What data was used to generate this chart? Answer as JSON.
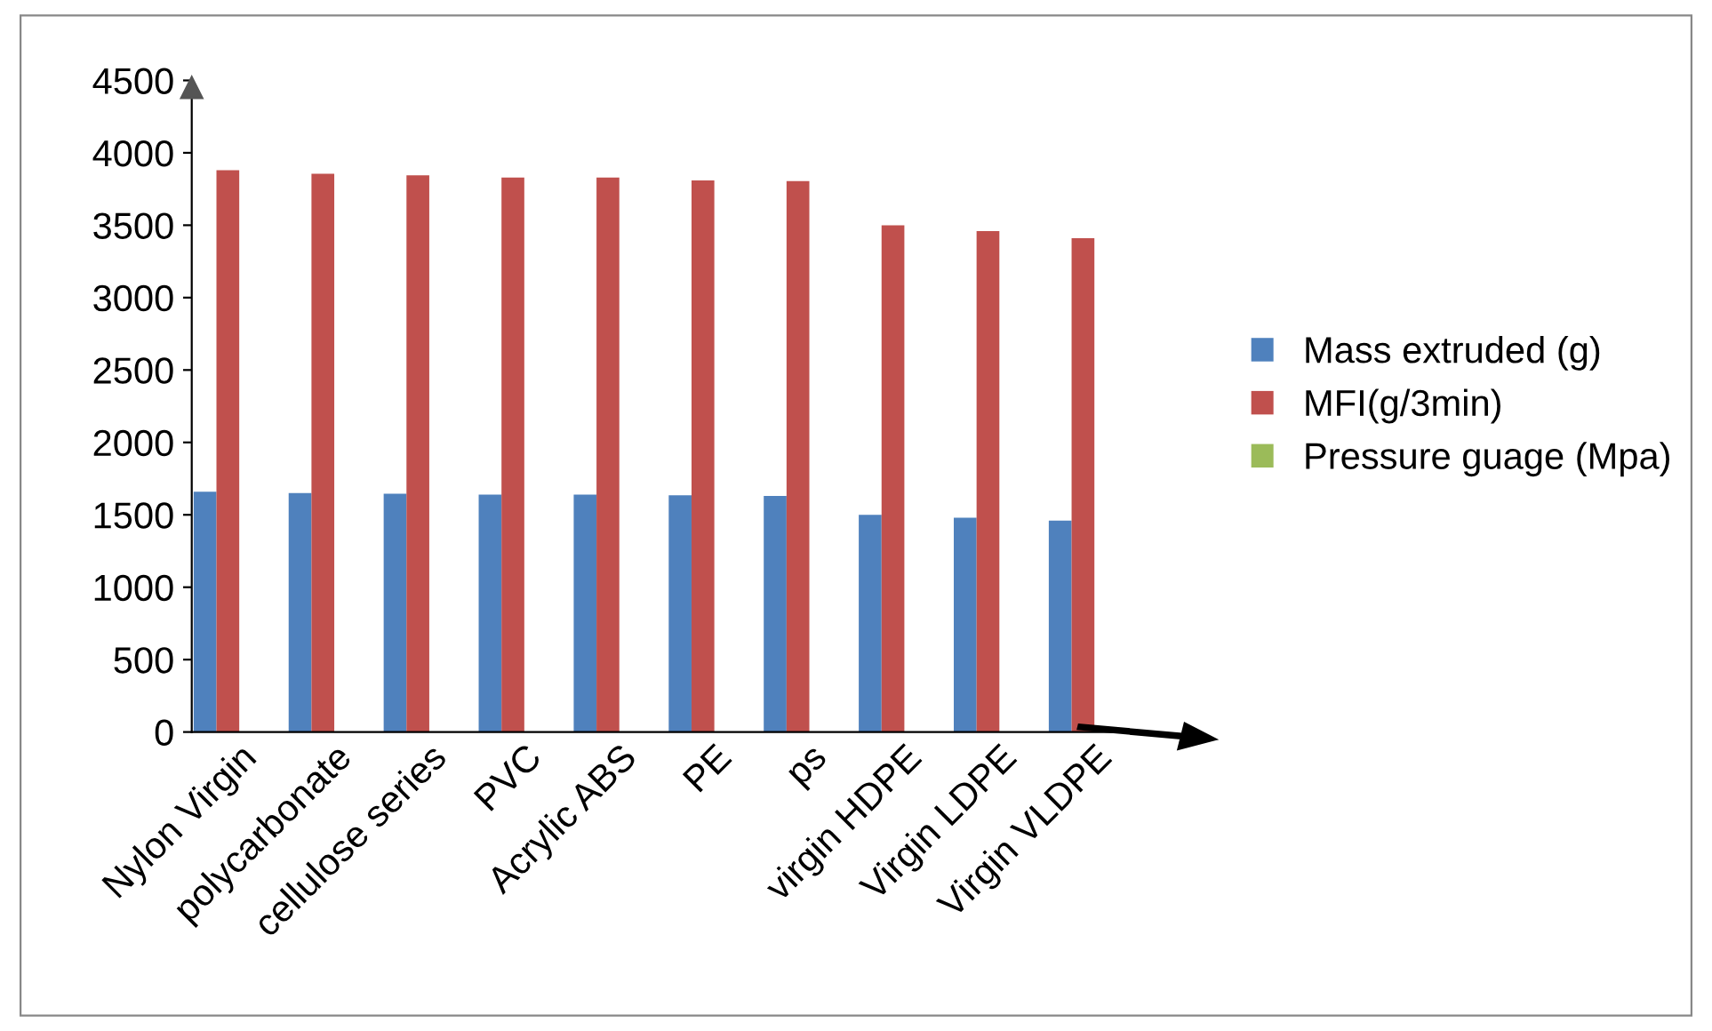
{
  "chart_data": {
    "type": "bar",
    "categories": [
      "Nylon Virgin",
      "polycarbonate",
      "cellulose series",
      "PVC",
      "Acrylic ABS",
      "PE",
      "ps",
      "virgin HDPE",
      "Virgin LDPE",
      "Virgin VLDPE"
    ],
    "series": [
      {
        "name": "Mass extruded (g)",
        "color": "#4f81bd",
        "values": [
          1660,
          1650,
          1645,
          1640,
          1640,
          1635,
          1630,
          1500,
          1480,
          1460
        ]
      },
      {
        "name": "MFI(g/3min)",
        "color": "#c0504d",
        "values": [
          3880,
          3855,
          3845,
          3830,
          3830,
          3810,
          3805,
          3500,
          3460,
          3410
        ]
      },
      {
        "name": "Pressure guage (Mpa)",
        "color": "#9bbb59",
        "values": [
          0,
          0,
          0,
          0,
          0,
          0,
          0,
          0,
          0,
          0
        ]
      }
    ],
    "ylim": [
      0,
      4500
    ],
    "yticks": [
      0,
      500,
      1000,
      1500,
      2000,
      2500,
      3000,
      3500,
      4000,
      4500
    ],
    "grid": false,
    "legend": "right"
  }
}
